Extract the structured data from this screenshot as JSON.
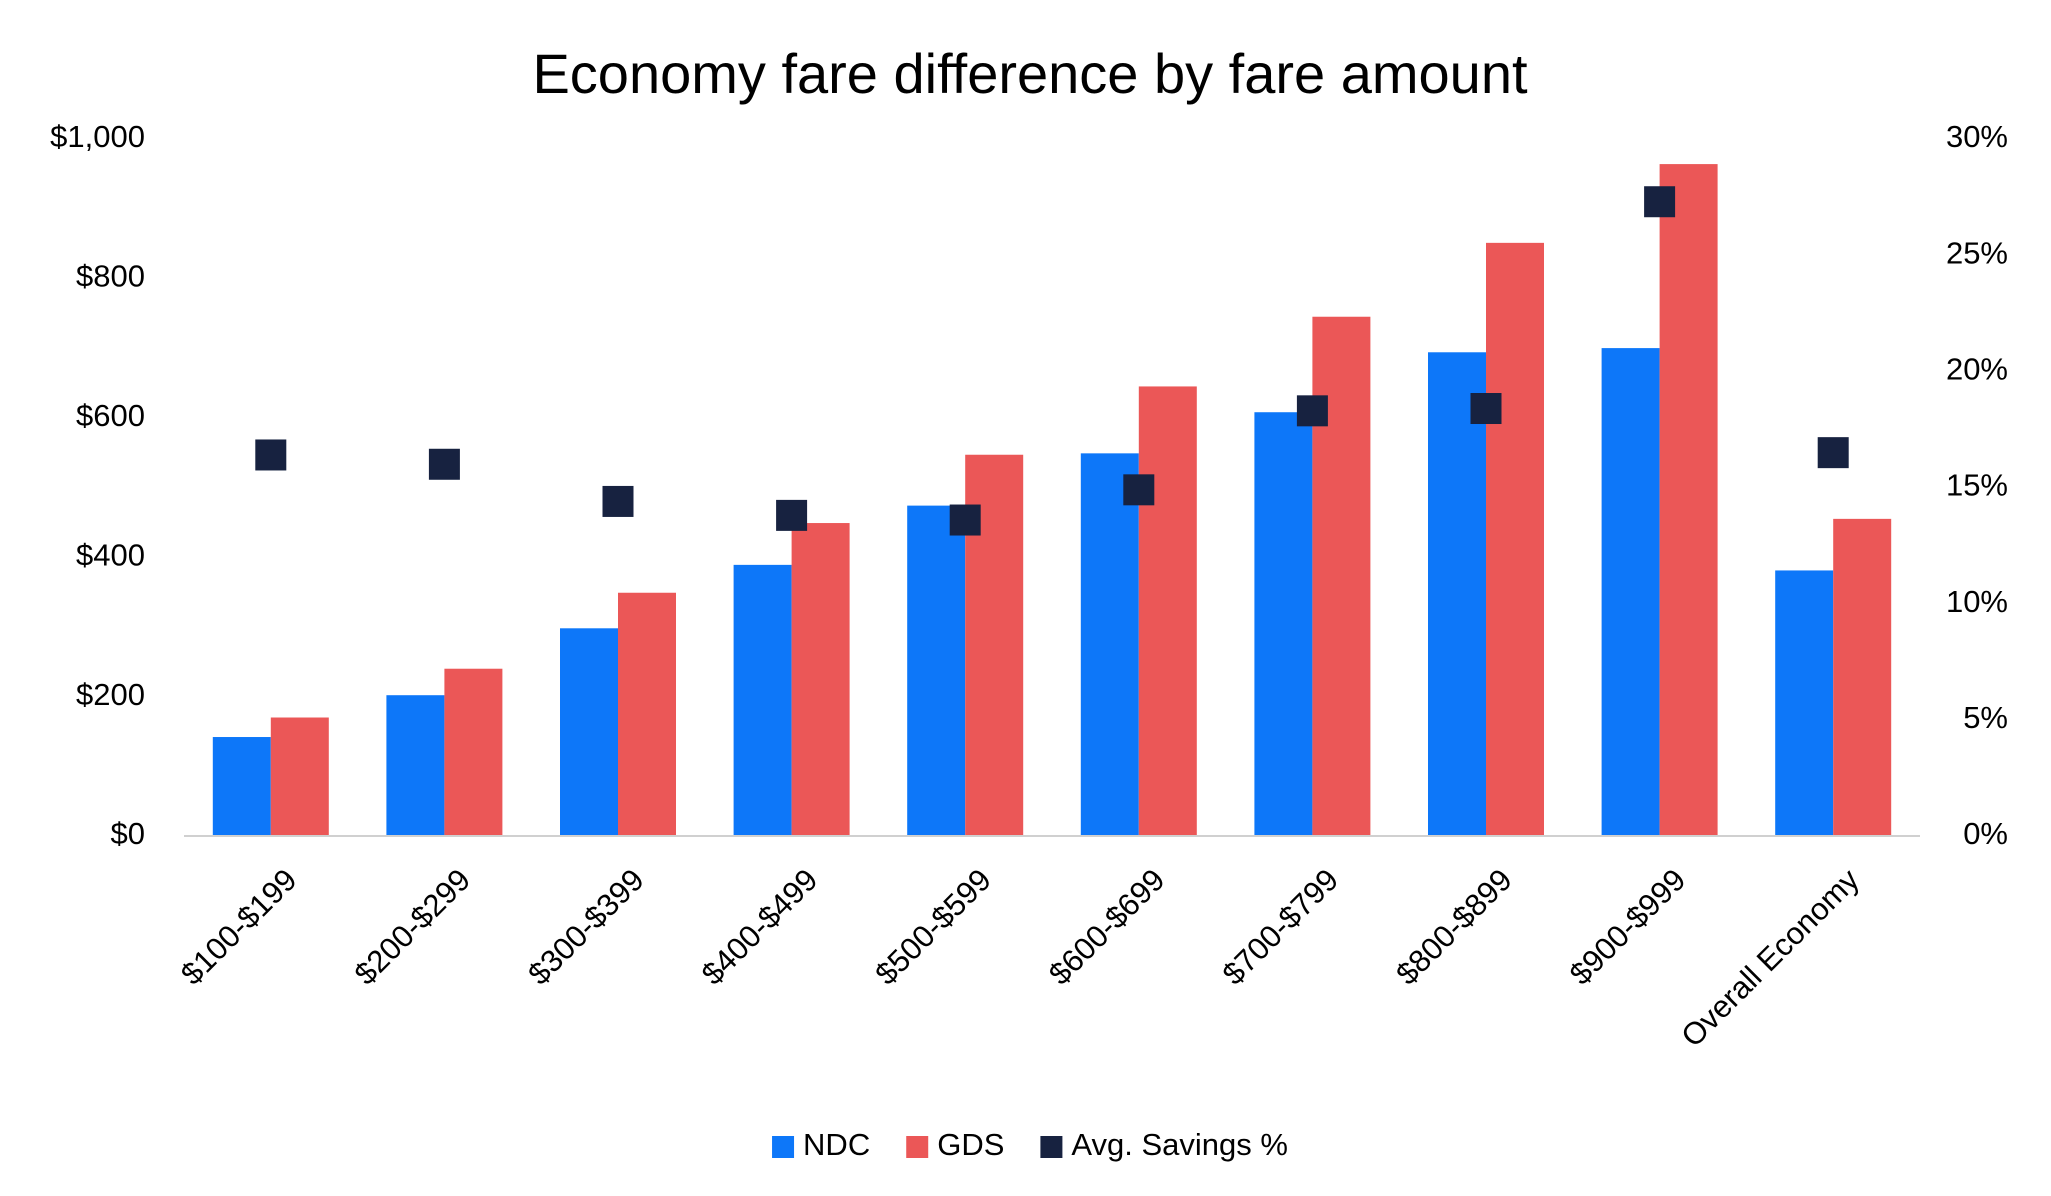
{
  "chart_data": {
    "type": "bar",
    "title": "Economy fare difference by fare amount",
    "categories": [
      "$100-$199",
      "$200-$299",
      "$300-$399",
      "$400-$499",
      "$500-$599",
      "$600-$699",
      "$700-$799",
      "$800-$899",
      "$900-$999",
      "Overall Economy"
    ],
    "series": [
      {
        "name": "NDC",
        "color": "#0d77f9",
        "values": [
          142,
          202,
          298,
          389,
          474,
          549,
          608,
          694,
          700,
          381
        ]
      },
      {
        "name": "GDS",
        "color": "#eb5757",
        "values": [
          170,
          240,
          349,
          449,
          547,
          645,
          745,
          851,
          964,
          455
        ]
      },
      {
        "name": "Avg. Savings %",
        "color": "#172240",
        "type": "scatter",
        "axis": "y2",
        "values": [
          16.4,
          16.0,
          14.4,
          13.8,
          13.6,
          14.9,
          18.3,
          18.4,
          27.3,
          16.5
        ]
      }
    ],
    "ylim": [
      0,
      1000
    ],
    "yticks": [
      {
        "value": 0,
        "label": "$0"
      },
      {
        "value": 200,
        "label": "$200"
      },
      {
        "value": 400,
        "label": "$400"
      },
      {
        "value": 600,
        "label": "$600"
      },
      {
        "value": 800,
        "label": "$800"
      },
      {
        "value": 1000,
        "label": "$1,000"
      }
    ],
    "y2lim": [
      0,
      30
    ],
    "y2ticks": [
      {
        "value": 0,
        "label": "0%"
      },
      {
        "value": 5,
        "label": "5%"
      },
      {
        "value": 10,
        "label": "10%"
      },
      {
        "value": 15,
        "label": "15%"
      },
      {
        "value": 20,
        "label": "20%"
      },
      {
        "value": 25,
        "label": "25%"
      },
      {
        "value": 30,
        "label": "30%"
      }
    ],
    "grid": false,
    "legend": "bottom"
  }
}
